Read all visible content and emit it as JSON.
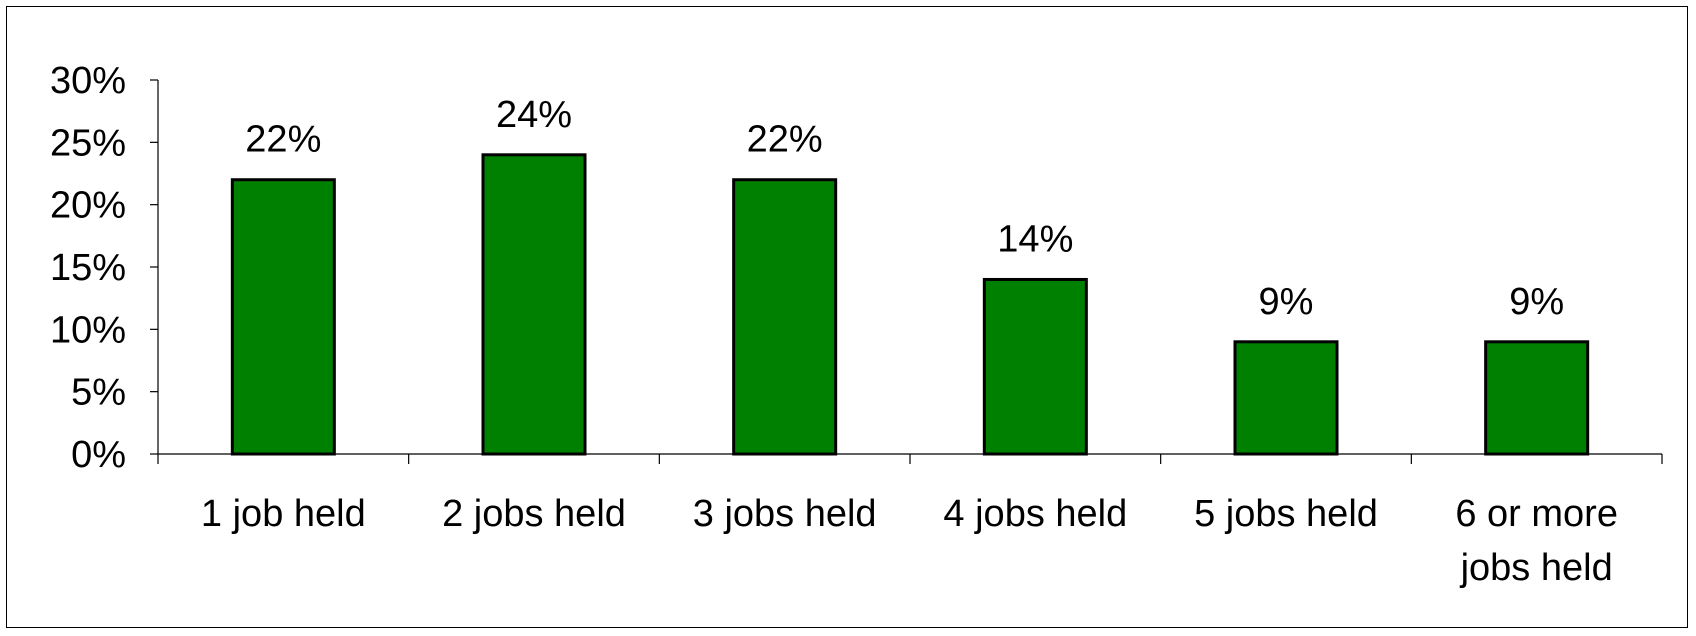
{
  "chart_data": {
    "type": "bar",
    "categories": [
      "1 job held",
      "2 jobs held",
      "3 jobs held",
      "4 jobs held",
      "5 jobs held",
      "6 or more jobs held"
    ],
    "category_label_lines": [
      [
        "1 job held"
      ],
      [
        "2 jobs held"
      ],
      [
        "3 jobs held"
      ],
      [
        "4 jobs held"
      ],
      [
        "5 jobs held"
      ],
      [
        "6 or more",
        "jobs held"
      ]
    ],
    "values": [
      22,
      24,
      22,
      14,
      9,
      9
    ],
    "data_labels": [
      "22%",
      "24%",
      "22%",
      "14%",
      "9%",
      "9%"
    ],
    "ylim": [
      0,
      30
    ],
    "yticks": [
      0,
      5,
      10,
      15,
      20,
      25,
      30
    ],
    "ytick_labels": [
      "0%",
      "5%",
      "10%",
      "15%",
      "20%",
      "25%",
      "30%"
    ],
    "bar_color": "#008000",
    "bar_edge_color": "#000000",
    "grid": false,
    "legend": "none"
  }
}
